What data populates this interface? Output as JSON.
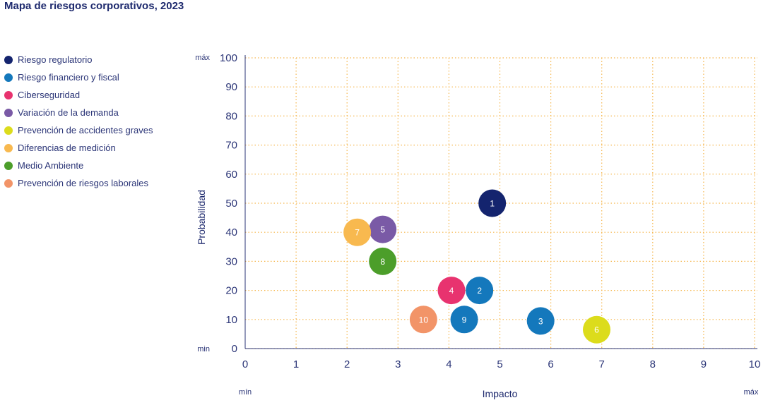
{
  "chart_data": {
    "type": "scatter",
    "title": "Mapa de riesgos corporativos, 2023",
    "xlabel": "Impacto",
    "ylabel": "Probabilidad",
    "xlim": [
      0,
      10
    ],
    "ylim": [
      0,
      100
    ],
    "x_ticks": [
      "0",
      "1",
      "2",
      "3",
      "4",
      "5",
      "6",
      "7",
      "8",
      "9",
      "10"
    ],
    "y_ticks": [
      "0",
      "10",
      "20",
      "30",
      "40",
      "50",
      "60",
      "70",
      "80",
      "90",
      "100"
    ],
    "x_min_label": "mín",
    "x_max_label": "máx",
    "y_min_label": "min",
    "y_max_label": "máx",
    "grid": true,
    "grid_color": "#f5b74f",
    "legend_position": "left",
    "series": [
      {
        "name": "Riesgo regulatorio",
        "color": "#14246e"
      },
      {
        "name": "Riesgo financiero y fiscal",
        "color": "#1478bc"
      },
      {
        "name": "Ciberseguridad",
        "color": "#e8336f"
      },
      {
        "name": "Variación de la demanda",
        "color": "#7a5aa6"
      },
      {
        "name": "Prevención de accidentes graves",
        "color": "#dcdc1c"
      },
      {
        "name": "Diferencias de medición",
        "color": "#f8b94f"
      },
      {
        "name": "Medio Ambiente",
        "color": "#4c9e2a"
      },
      {
        "name": "Prevención de riesgos laborales",
        "color": "#f29468"
      }
    ],
    "points": [
      {
        "label": "1",
        "x": 4.85,
        "y": 50,
        "color": "#14246e"
      },
      {
        "label": "2",
        "x": 4.6,
        "y": 20,
        "color": "#1478bc"
      },
      {
        "label": "3",
        "x": 5.8,
        "y": 9.5,
        "color": "#1478bc"
      },
      {
        "label": "4",
        "x": 4.05,
        "y": 20,
        "color": "#e8336f"
      },
      {
        "label": "5",
        "x": 2.7,
        "y": 41,
        "color": "#7a5aa6"
      },
      {
        "label": "6",
        "x": 6.9,
        "y": 6.5,
        "color": "#dcdc1c"
      },
      {
        "label": "7",
        "x": 2.2,
        "y": 40,
        "color": "#f8b94f"
      },
      {
        "label": "8",
        "x": 2.7,
        "y": 30,
        "color": "#4c9e2a"
      },
      {
        "label": "9",
        "x": 4.3,
        "y": 10,
        "color": "#1478bc"
      },
      {
        "label": "10",
        "x": 3.5,
        "y": 10,
        "color": "#f29468"
      }
    ]
  }
}
